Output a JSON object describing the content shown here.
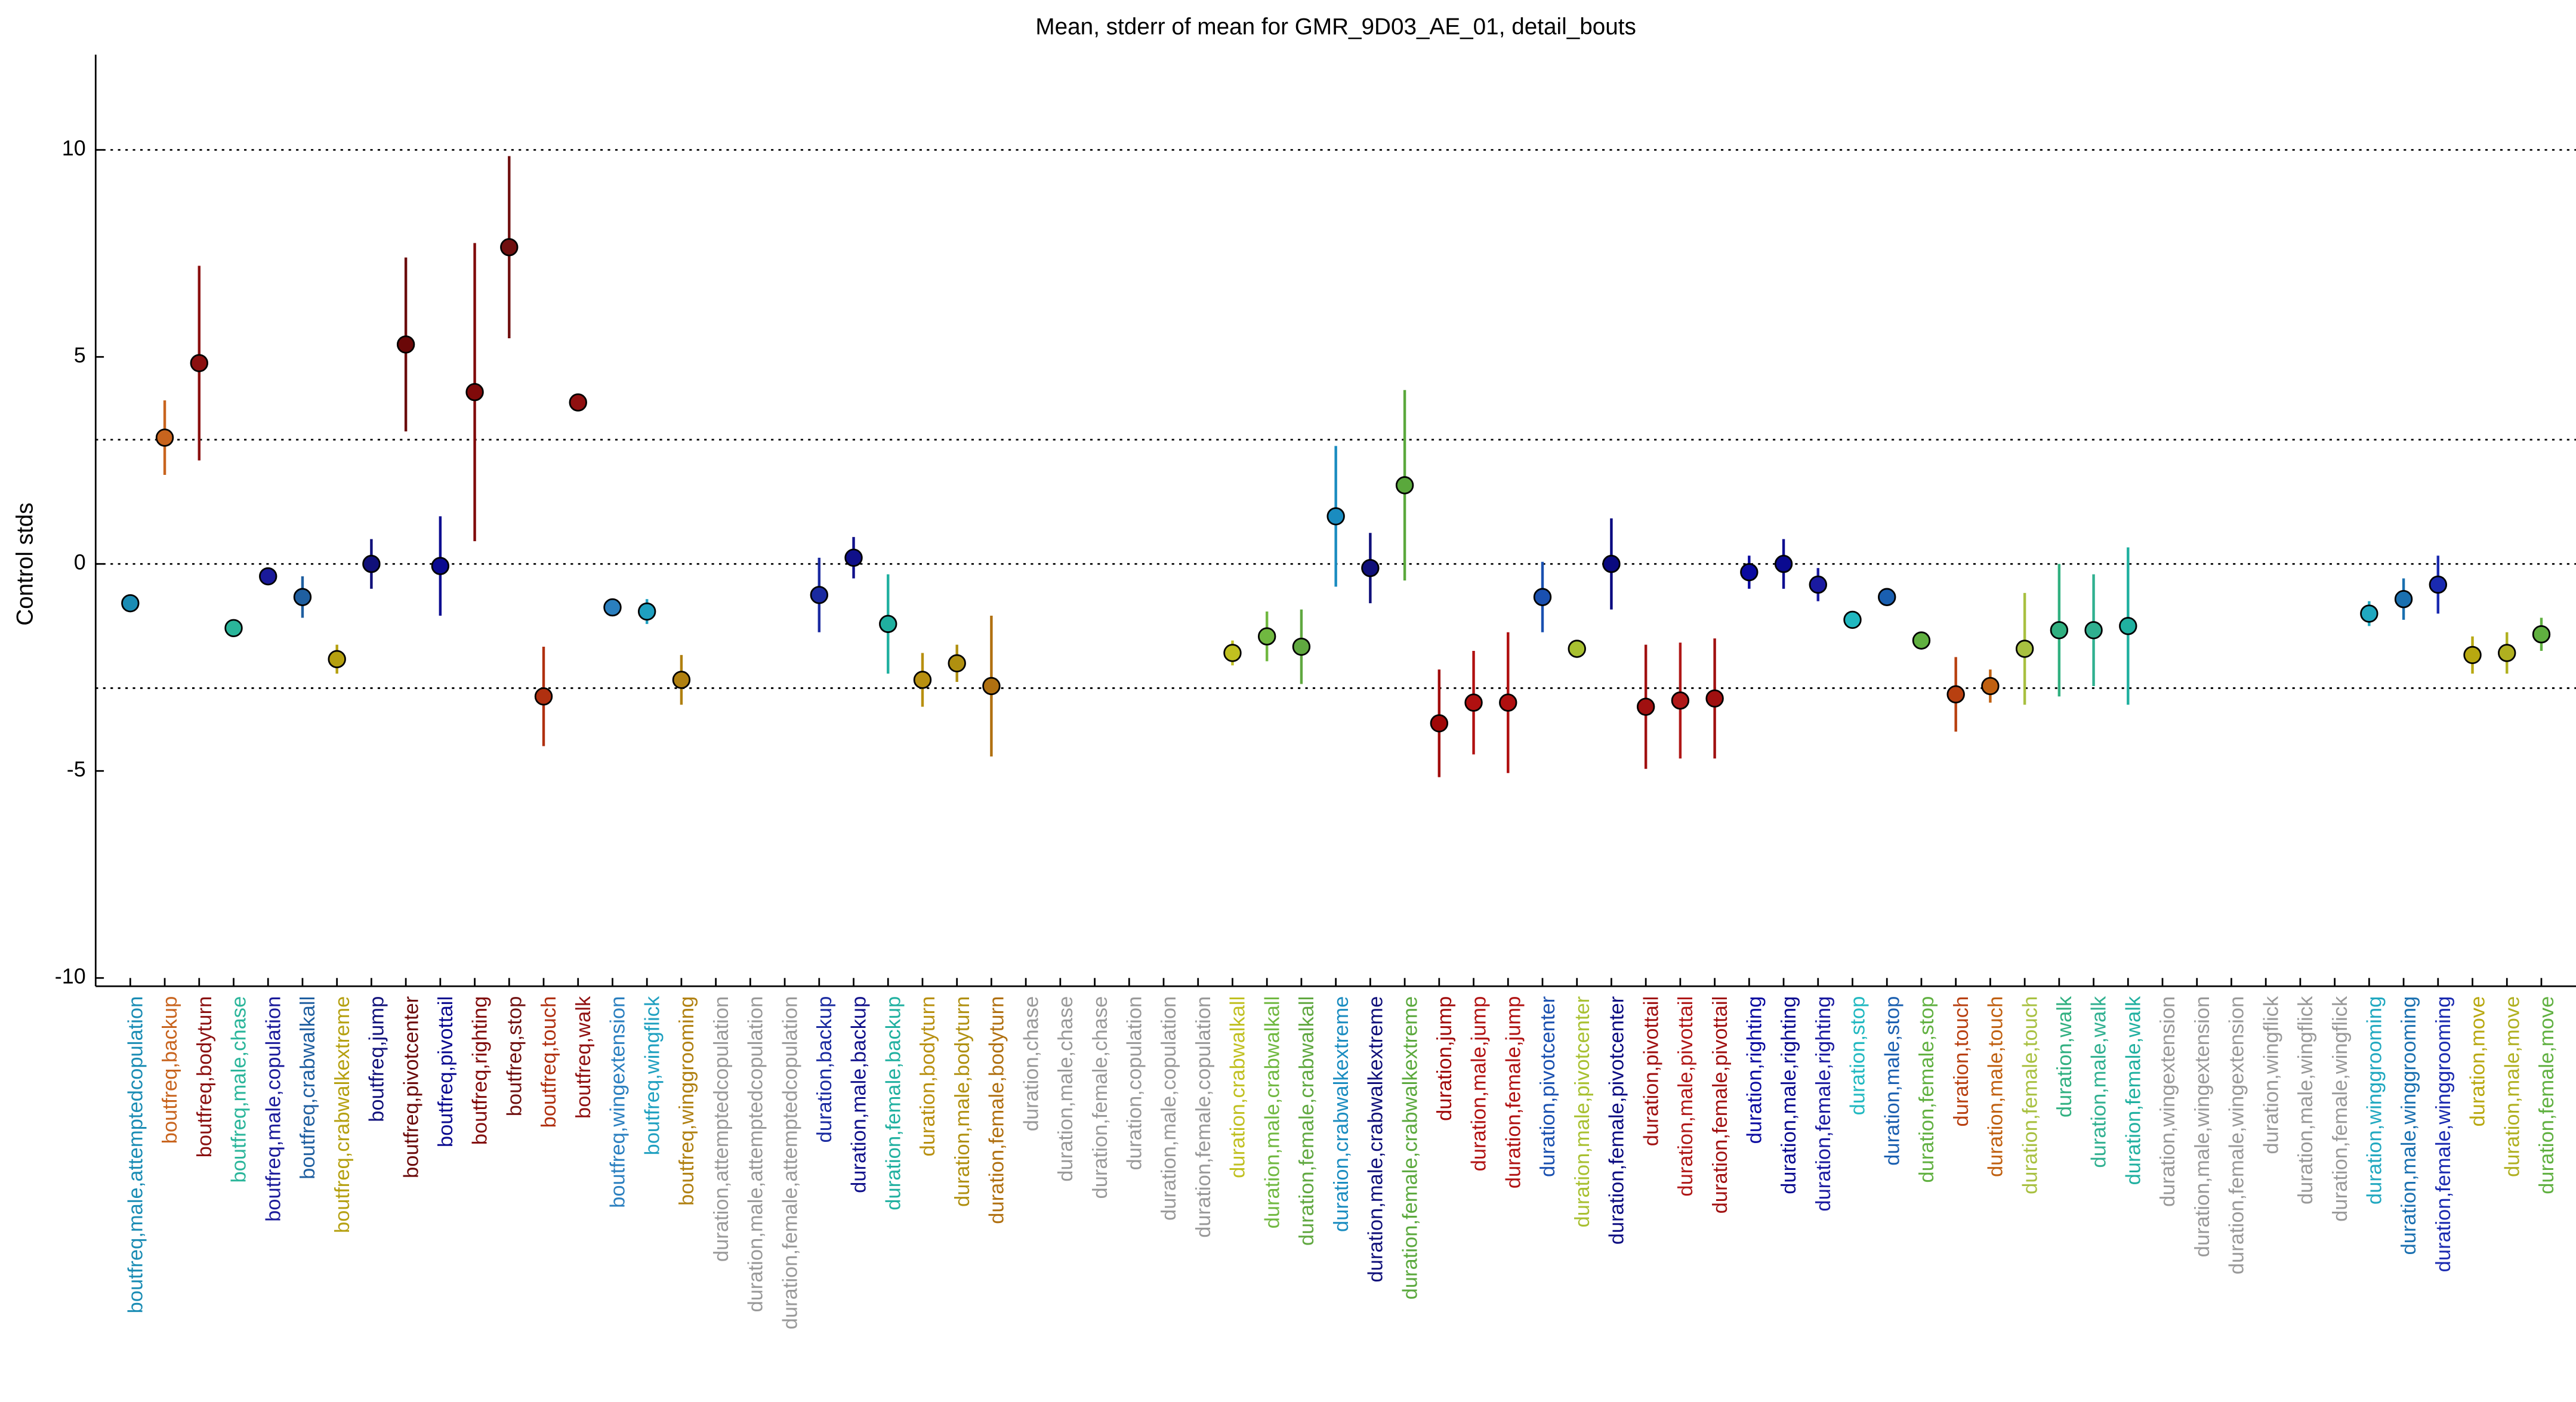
{
  "chart_data": {
    "type": "errorbar",
    "title": "Mean, stderr of mean for GMR_9D03_AE_01, detail_bouts",
    "ylabel": "Control stds",
    "ylim": [
      -10.2,
      12.3
    ],
    "yticks": [
      -10,
      -5,
      0,
      5,
      10
    ],
    "reference_lines": [
      -3,
      0,
      3,
      10
    ],
    "categories": [
      "boutfreq,male,attemptedcopulation",
      "boutfreq,backup",
      "boutfreq,bodyturn",
      "boutfreq,male,chase",
      "boutfreq,male,copulation",
      "boutfreq,crabwalkall",
      "boutfreq,crabwalkextreme",
      "boutfreq,jump",
      "boutfreq,pivotcenter",
      "boutfreq,pivottail",
      "boutfreq,righting",
      "boutfreq,stop",
      "boutfreq,touch",
      "boutfreq,walk",
      "boutfreq,wingextension",
      "boutfreq,wingflick",
      "boutfreq,winggrooming",
      "duration,attemptedcopulation",
      "duration,male,attemptedcopulation",
      "duration,female,attemptedcopulation",
      "duration,backup",
      "duration,male,backup",
      "duration,female,backup",
      "duration,bodyturn",
      "duration,male,bodyturn",
      "duration,female,bodyturn",
      "duration,chase",
      "duration,male,chase",
      "duration,female,chase",
      "duration,copulation",
      "duration,male,copulation",
      "duration,female,copulation",
      "duration,crabwalkall",
      "duration,male,crabwalkall",
      "duration,female,crabwalkall",
      "duration,crabwalkextreme",
      "duration,male,crabwalkextreme",
      "duration,female,crabwalkextreme",
      "duration,jump",
      "duration,male,jump",
      "duration,female,jump",
      "duration,pivotcenter",
      "duration,male,pivotcenter",
      "duration,female,pivotcenter",
      "duration,pivottail",
      "duration,male,pivottail",
      "duration,female,pivottail",
      "duration,righting",
      "duration,male,righting",
      "duration,female,righting",
      "duration,stop",
      "duration,male,stop",
      "duration,female,stop",
      "duration,touch",
      "duration,male,touch",
      "duration,female,touch",
      "duration,walk",
      "duration,male,walk",
      "duration,female,walk",
      "duration,wingextension",
      "duration,male,wingextension",
      "duration,female,wingextension",
      "duration,wingflick",
      "duration,male,wingflick",
      "duration,female,wingflick",
      "duration,winggrooming",
      "duration,male,winggrooming",
      "duration,female,winggrooming",
      "duration,move",
      "duration,male,move",
      "duration,female,move"
    ],
    "values": [
      -0.95,
      3.05,
      4.85,
      -1.55,
      -0.3,
      -0.8,
      -2.3,
      0.0,
      5.3,
      -0.05,
      4.15,
      7.65,
      -3.2,
      3.9,
      -1.05,
      -1.15,
      -2.8,
      null,
      null,
      null,
      -0.75,
      0.15,
      -1.45,
      -2.8,
      -2.4,
      -2.95,
      null,
      null,
      null,
      null,
      null,
      null,
      -2.15,
      -1.75,
      -2.0,
      1.15,
      -0.1,
      1.9,
      -3.85,
      -3.35,
      -3.35,
      -0.8,
      -2.05,
      0.0,
      -3.45,
      -3.3,
      -3.25,
      -0.2,
      0.0,
      -0.5,
      -1.35,
      -0.8,
      -1.85,
      -3.15,
      -2.95,
      -2.05,
      -1.6,
      -1.6,
      -1.5,
      null,
      null,
      null,
      null,
      null,
      null,
      -1.2,
      -0.85,
      -0.5,
      -2.2,
      -2.15,
      -1.7
    ],
    "errors": [
      0.1,
      0.9,
      2.35,
      0.05,
      0.05,
      0.5,
      0.35,
      0.6,
      2.1,
      1.2,
      3.6,
      2.2,
      1.2,
      0.15,
      0.1,
      0.3,
      0.6,
      null,
      null,
      null,
      0.9,
      0.5,
      1.2,
      0.65,
      0.45,
      1.7,
      null,
      null,
      null,
      null,
      null,
      null,
      0.3,
      0.6,
      0.9,
      1.7,
      0.85,
      2.3,
      1.3,
      1.25,
      1.7,
      0.85,
      0.2,
      1.1,
      1.5,
      1.4,
      1.45,
      0.4,
      0.6,
      0.4,
      0.05,
      0.1,
      0.2,
      0.9,
      0.4,
      1.35,
      1.6,
      1.35,
      1.9,
      null,
      null,
      null,
      null,
      null,
      null,
      0.3,
      0.5,
      0.7,
      0.45,
      0.5,
      0.4
    ],
    "colors": [
      "#1a8cb4",
      "#c8641e",
      "#8b1010",
      "#2ab59a",
      "#1a1a9a",
      "#1f5fa0",
      "#b5a010",
      "#10107a",
      "#6a0808",
      "#0a0a90",
      "#800a0a",
      "#701010",
      "#b03010",
      "#901010",
      "#2a7fbf",
      "#1fa0c0",
      "#b08010",
      "#999999",
      "#999999",
      "#999999",
      "#1a2aa0",
      "#10108a",
      "#20b0a0",
      "#b89010",
      "#b09010",
      "#b07010",
      "#999999",
      "#999999",
      "#999999",
      "#999999",
      "#999999",
      "#999999",
      "#c0c020",
      "#70b840",
      "#60a840",
      "#1a8cc0",
      "#10107a",
      "#5aa83c",
      "#a00808",
      "#b01010",
      "#b01010",
      "#1a50b0",
      "#a8c030",
      "#0a0a80",
      "#a01010",
      "#b01818",
      "#a01010",
      "#0a0aa0",
      "#0a0a90",
      "#1a1aa0",
      "#20b8c0",
      "#1a5fb0",
      "#60b040",
      "#b84010",
      "#c06010",
      "#a8c040",
      "#30b080",
      "#30b090",
      "#20b0a0",
      "#999999",
      "#999999",
      "#999999",
      "#999999",
      "#999999",
      "#999999",
      "#20a8c0",
      "#1a70b0",
      "#1a2ab0",
      "#b8a810",
      "#b0b020",
      "#60b040"
    ]
  }
}
